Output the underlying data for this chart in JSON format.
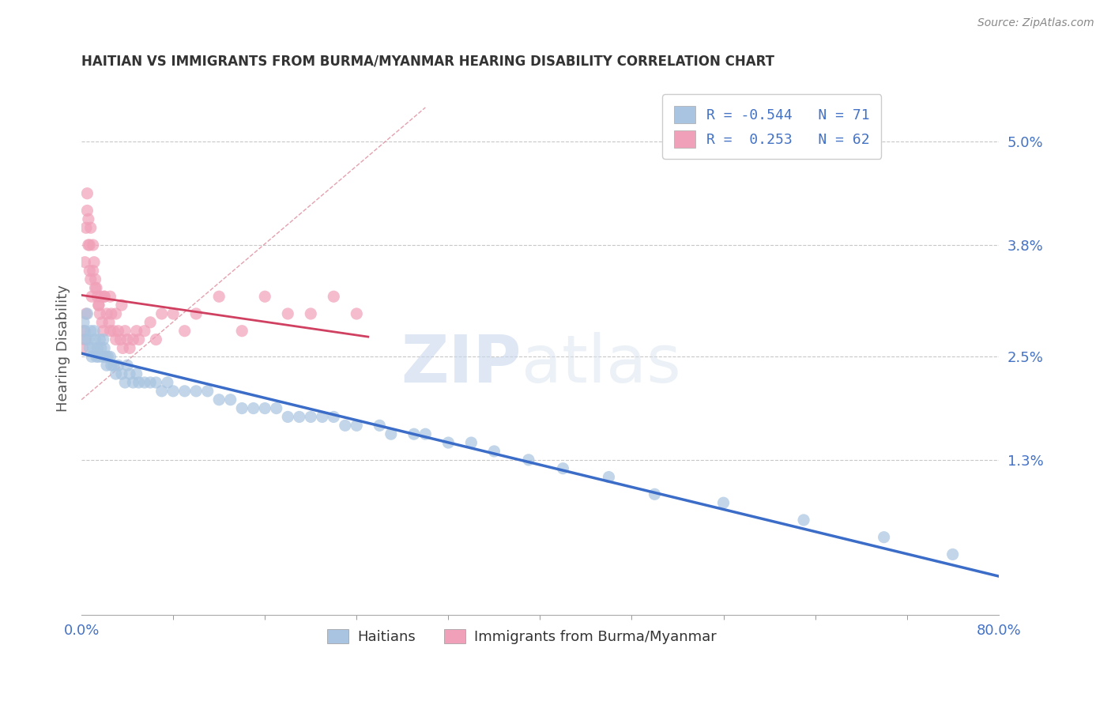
{
  "title": "HAITIAN VS IMMIGRANTS FROM BURMA/MYANMAR HEARING DISABILITY CORRELATION CHART",
  "source": "Source: ZipAtlas.com",
  "ylabel": "Hearing Disability",
  "xmin": 0.0,
  "xmax": 0.8,
  "ymin": -0.005,
  "ymax": 0.057,
  "yticks": [
    0.013,
    0.025,
    0.038,
    0.05
  ],
  "ytick_labels": [
    "1.3%",
    "2.5%",
    "3.8%",
    "5.0%"
  ],
  "grid_color": "#c8c8c8",
  "background_color": "#ffffff",
  "haitian_color": "#a8c4e0",
  "burma_color": "#f0a0b8",
  "haitian_R": -0.544,
  "haitian_N": 71,
  "burma_R": 0.253,
  "burma_N": 62,
  "legend_label_haitian": "Haitians",
  "legend_label_burma": "Immigrants from Burma/Myanmar",
  "trend_blue": "#3a6cc8",
  "trend_pink": "#d04060",
  "ref_line_color": "#e090a0",
  "watermark_zip": "ZIP",
  "watermark_atlas": "atlas",
  "title_color": "#333333",
  "axis_label_color": "#4472c4",
  "haitian_scatter_x": [
    0.002,
    0.003,
    0.004,
    0.005,
    0.006,
    0.007,
    0.008,
    0.009,
    0.01,
    0.011,
    0.012,
    0.013,
    0.014,
    0.015,
    0.016,
    0.017,
    0.018,
    0.019,
    0.02,
    0.021,
    0.022,
    0.023,
    0.025,
    0.026,
    0.028,
    0.03,
    0.032,
    0.035,
    0.038,
    0.04,
    0.042,
    0.045,
    0.048,
    0.05,
    0.055,
    0.06,
    0.065,
    0.07,
    0.075,
    0.08,
    0.09,
    0.1,
    0.11,
    0.12,
    0.13,
    0.14,
    0.15,
    0.16,
    0.17,
    0.18,
    0.19,
    0.2,
    0.21,
    0.22,
    0.23,
    0.24,
    0.26,
    0.27,
    0.29,
    0.3,
    0.32,
    0.34,
    0.36,
    0.39,
    0.42,
    0.46,
    0.5,
    0.56,
    0.63,
    0.7,
    0.76
  ],
  "haitian_scatter_y": [
    0.029,
    0.028,
    0.027,
    0.03,
    0.027,
    0.026,
    0.028,
    0.025,
    0.026,
    0.028,
    0.027,
    0.025,
    0.026,
    0.025,
    0.027,
    0.026,
    0.025,
    0.027,
    0.026,
    0.025,
    0.024,
    0.025,
    0.025,
    0.024,
    0.024,
    0.023,
    0.024,
    0.023,
    0.022,
    0.024,
    0.023,
    0.022,
    0.023,
    0.022,
    0.022,
    0.022,
    0.022,
    0.021,
    0.022,
    0.021,
    0.021,
    0.021,
    0.021,
    0.02,
    0.02,
    0.019,
    0.019,
    0.019,
    0.019,
    0.018,
    0.018,
    0.018,
    0.018,
    0.018,
    0.017,
    0.017,
    0.017,
    0.016,
    0.016,
    0.016,
    0.015,
    0.015,
    0.014,
    0.013,
    0.012,
    0.011,
    0.009,
    0.008,
    0.006,
    0.004,
    0.002
  ],
  "burma_scatter_x": [
    0.001,
    0.002,
    0.003,
    0.004,
    0.005,
    0.006,
    0.007,
    0.008,
    0.009,
    0.01,
    0.011,
    0.012,
    0.013,
    0.014,
    0.015,
    0.016,
    0.017,
    0.018,
    0.019,
    0.02,
    0.022,
    0.024,
    0.025,
    0.026,
    0.028,
    0.03,
    0.032,
    0.034,
    0.036,
    0.038,
    0.04,
    0.042,
    0.045,
    0.048,
    0.05,
    0.055,
    0.06,
    0.065,
    0.07,
    0.08,
    0.09,
    0.1,
    0.12,
    0.14,
    0.16,
    0.18,
    0.2,
    0.22,
    0.24,
    0.003,
    0.004,
    0.005,
    0.006,
    0.007,
    0.008,
    0.01,
    0.012,
    0.015,
    0.02,
    0.025,
    0.03,
    0.035
  ],
  "burma_scatter_y": [
    0.026,
    0.028,
    0.027,
    0.03,
    0.042,
    0.038,
    0.035,
    0.034,
    0.032,
    0.038,
    0.036,
    0.034,
    0.033,
    0.032,
    0.031,
    0.03,
    0.032,
    0.029,
    0.028,
    0.032,
    0.03,
    0.029,
    0.028,
    0.03,
    0.028,
    0.027,
    0.028,
    0.027,
    0.026,
    0.028,
    0.027,
    0.026,
    0.027,
    0.028,
    0.027,
    0.028,
    0.029,
    0.027,
    0.03,
    0.03,
    0.028,
    0.03,
    0.032,
    0.028,
    0.032,
    0.03,
    0.03,
    0.032,
    0.03,
    0.036,
    0.04,
    0.044,
    0.041,
    0.038,
    0.04,
    0.035,
    0.033,
    0.031,
    0.032,
    0.032,
    0.03,
    0.031
  ]
}
